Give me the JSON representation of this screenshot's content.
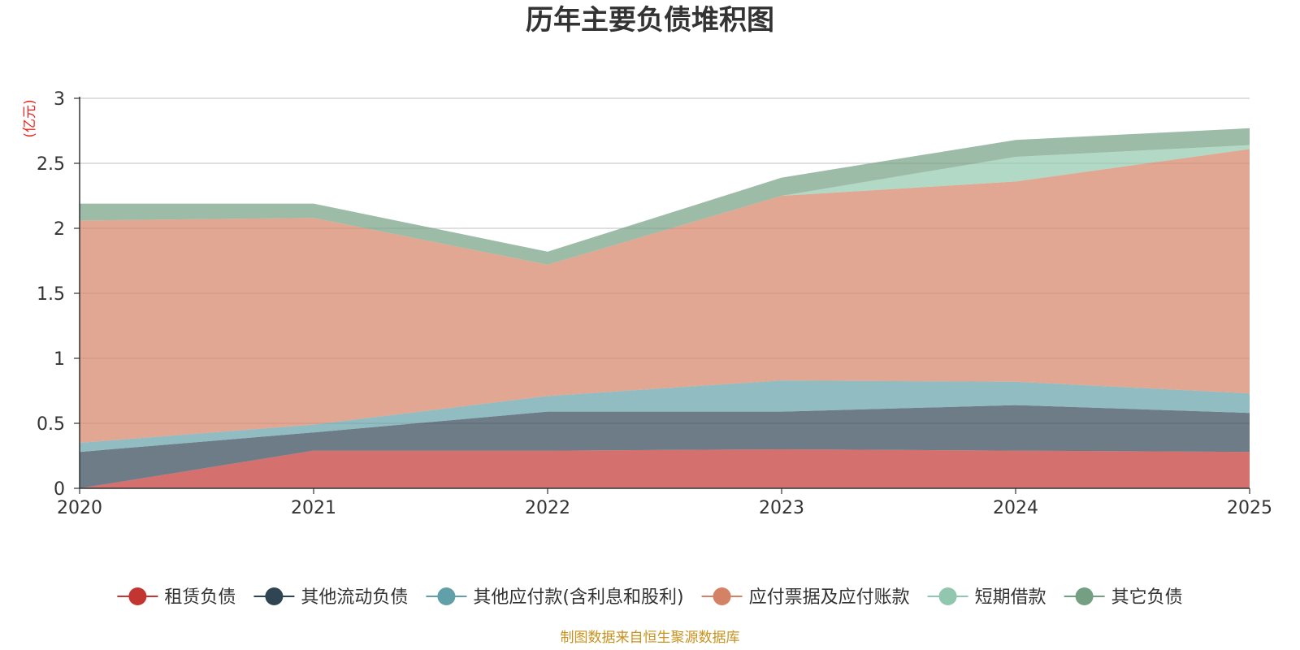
{
  "chart_data": {
    "type": "area",
    "stacked": true,
    "title": "历年主要负债堆积图",
    "unit_label": "(亿元)",
    "x": [
      "2020",
      "2021",
      "2022",
      "2023",
      "2024",
      "2025"
    ],
    "ylim": [
      0,
      3
    ],
    "yticks": [
      "0",
      "0.5",
      "1",
      "1.5",
      "2",
      "2.5",
      "3"
    ],
    "grid": true,
    "legend_position": "bottom",
    "series": [
      {
        "name": "租赁负债",
        "color": "#c23531",
        "values": [
          0.0,
          0.29,
          0.29,
          0.3,
          0.29,
          0.28
        ]
      },
      {
        "name": "其他流动负债",
        "color": "#2f4554",
        "values": [
          0.28,
          0.14,
          0.3,
          0.29,
          0.35,
          0.3
        ]
      },
      {
        "name": "其他应付款(含利息和股利)",
        "color": "#61a0a8",
        "values": [
          0.07,
          0.06,
          0.12,
          0.24,
          0.18,
          0.15
        ]
      },
      {
        "name": "应付票据及应付账款",
        "color": "#d48265",
        "values": [
          1.71,
          1.59,
          1.01,
          1.42,
          1.54,
          1.88
        ]
      },
      {
        "name": "短期借款",
        "color": "#91c7ae",
        "values": [
          0.0,
          0.0,
          0.0,
          0.0,
          0.19,
          0.03
        ]
      },
      {
        "name": "其它负债",
        "color": "#749f83",
        "values": [
          0.13,
          0.11,
          0.1,
          0.14,
          0.13,
          0.13
        ]
      }
    ],
    "source_note": "制图数据来自恒生聚源数据库"
  }
}
